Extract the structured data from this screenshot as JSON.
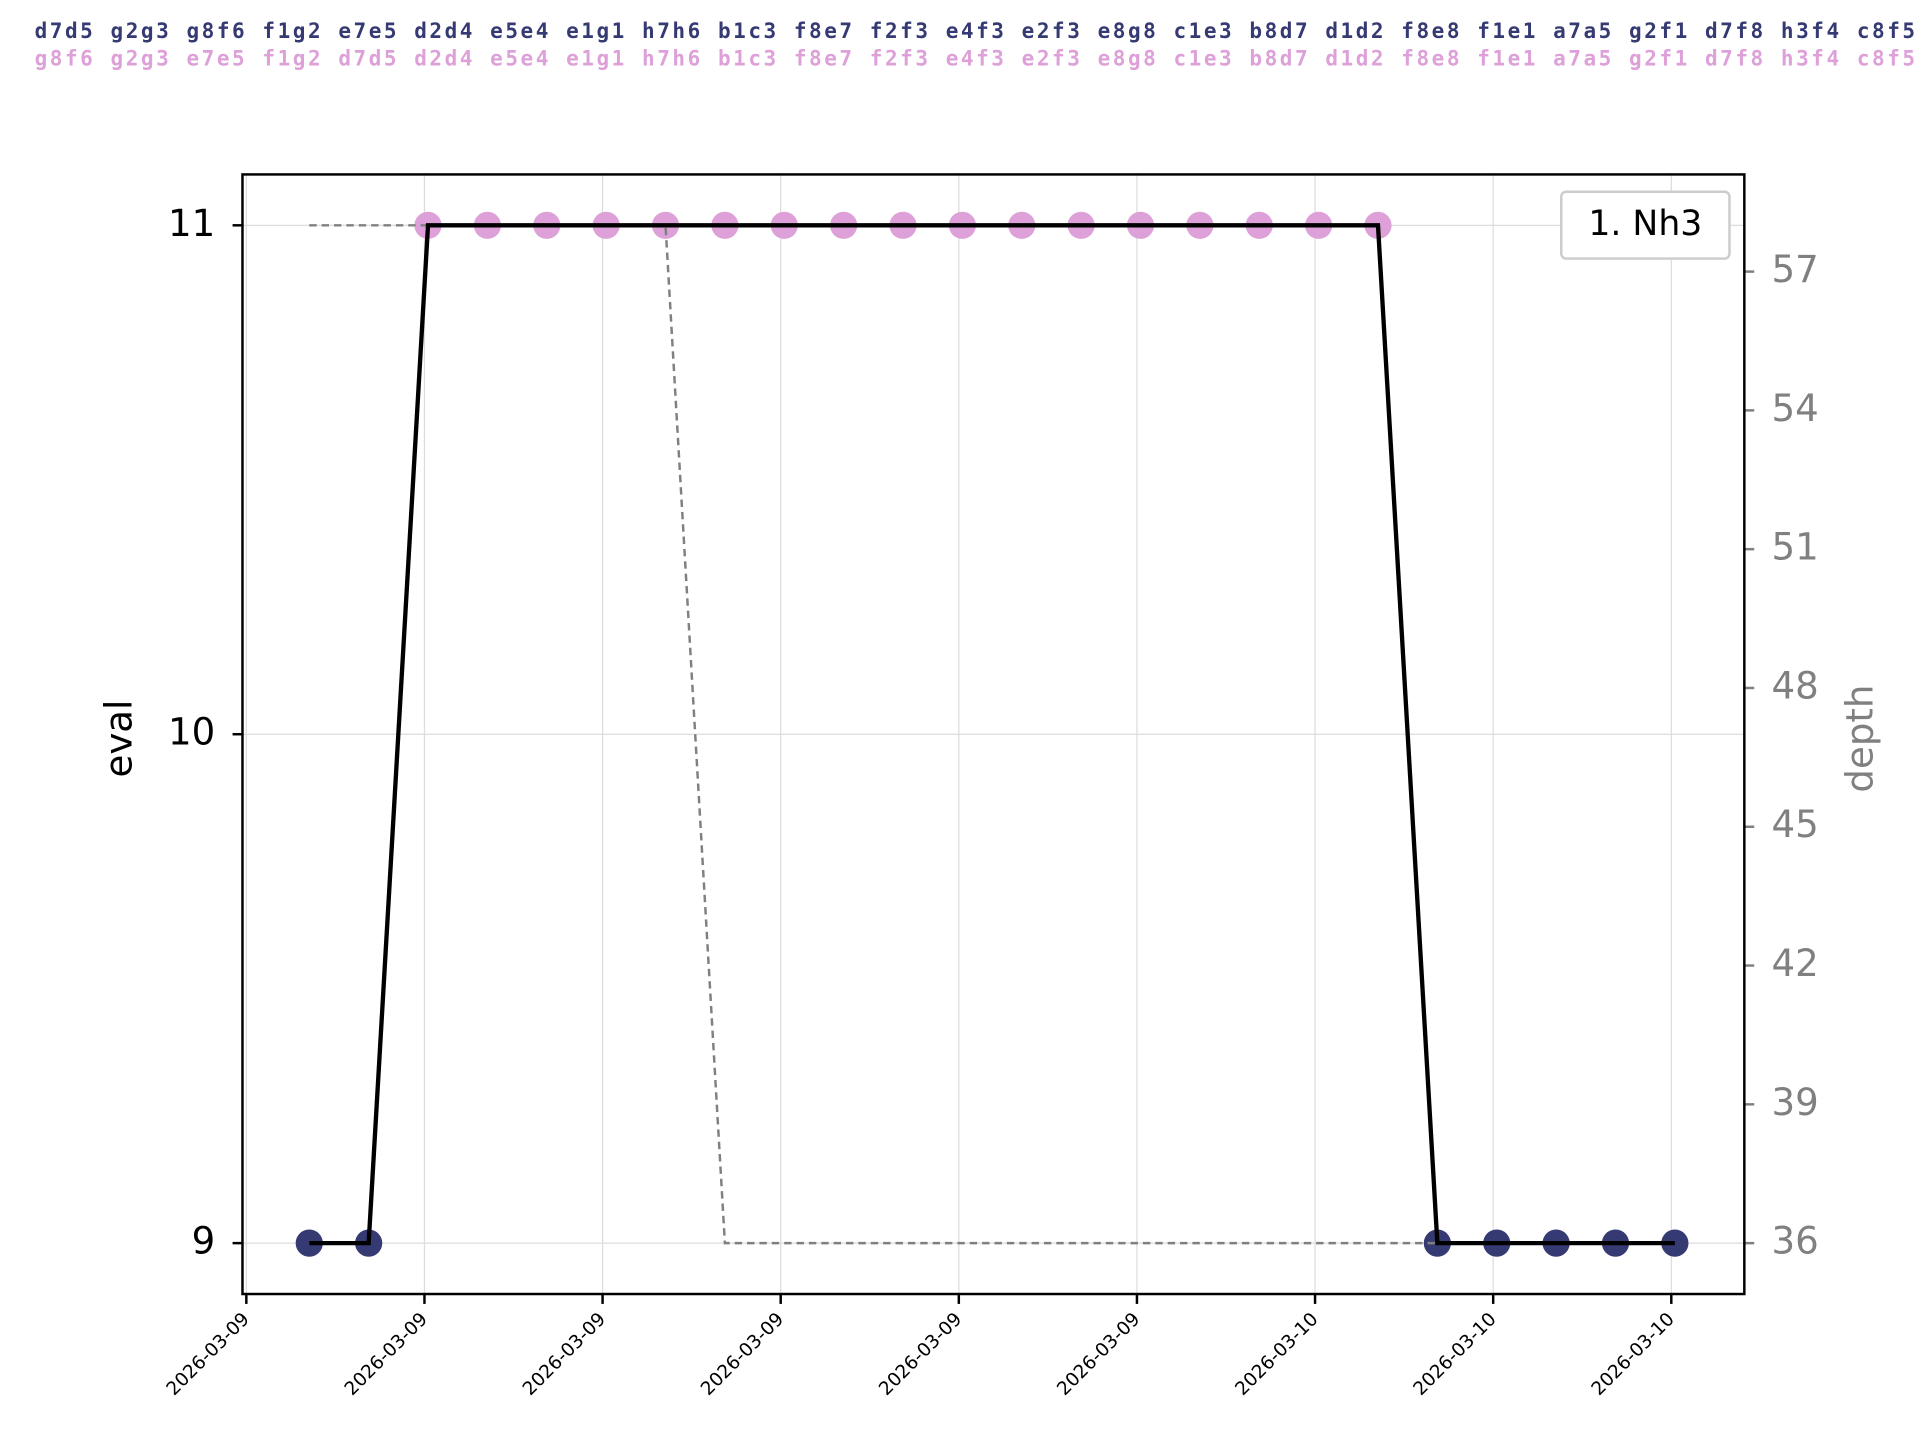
{
  "chart_data": {
    "type": "line",
    "move_lines": [
      {
        "text": "d7d5 g2g3 g8f6 f1g2 e7e5 d2d4 e5e4 e1g1 h7h6 b1c3 f8e7 f2f3 e4f3 e2f3 e8g8 c1e3 b8d7 d1d2 f8e8 f1e1 a7a5 g2f1 d7f8 h3f4 c8f5",
        "color": "#363a73"
      },
      {
        "text": "g8f6 g2g3 e7e5 f1g2 d7d5 d2d4 e5e4 e1g1 h7h6 b1c3 f8e7 f2f3 e4f3 e2f3 e8g8 c1e3 b8d7 d1d2 f8e8 f1e1 a7a5 g2f1 d7f8 h3f4 c8f5",
        "color": "#dda0d8"
      }
    ],
    "y_label": "eval",
    "y2_label": "depth",
    "x": [
      0,
      1,
      2,
      3,
      4,
      5,
      6,
      7,
      8,
      9,
      10,
      11,
      12,
      13,
      14,
      15,
      16,
      17,
      18,
      19,
      20,
      21,
      22,
      23
    ],
    "xlim": [
      -1.125,
      24.17
    ],
    "xticks": [
      {
        "value": -1.06,
        "label": "2026-03-09"
      },
      {
        "value": 1.94,
        "label": "2026-03-09"
      },
      {
        "value": 4.94,
        "label": "2026-03-09"
      },
      {
        "value": 7.94,
        "label": "2026-03-09"
      },
      {
        "value": 10.94,
        "label": "2026-03-09"
      },
      {
        "value": 13.94,
        "label": "2026-03-09"
      },
      {
        "value": 16.94,
        "label": "2026-03-10"
      },
      {
        "value": 19.94,
        "label": "2026-03-10"
      },
      {
        "value": 22.94,
        "label": "2026-03-10"
      }
    ],
    "ylim": [
      8.9,
      11.1
    ],
    "yticks": [
      9,
      10,
      11
    ],
    "y2lim": [
      34.9,
      59.1
    ],
    "y2ticks": [
      36,
      39,
      42,
      45,
      48,
      51,
      54,
      57
    ],
    "grid": true,
    "legend": "upper right",
    "series": [
      {
        "name": "1. Nh3",
        "color": "#000000",
        "values": [
          9,
          9,
          11,
          11,
          11,
          11,
          11,
          11,
          11,
          11,
          11,
          11,
          11,
          11,
          11,
          11,
          11,
          11,
          11,
          9,
          9,
          9,
          9,
          9
        ],
        "marker_colors": [
          "#363a73",
          "#363a73",
          "#dda0d8",
          "#dda0d8",
          "#dda0d8",
          "#dda0d8",
          "#dda0d8",
          "#dda0d8",
          "#dda0d8",
          "#dda0d8",
          "#dda0d8",
          "#dda0d8",
          "#dda0d8",
          "#dda0d8",
          "#dda0d8",
          "#dda0d8",
          "#dda0d8",
          "#dda0d8",
          "#dda0d8",
          "#363a73",
          "#363a73",
          "#363a73",
          "#363a73",
          "#363a73"
        ]
      },
      {
        "color": "#808080",
        "axis": "y2",
        "linestyle": "dashed",
        "values": [
          58,
          58,
          58,
          58,
          58,
          58,
          58,
          36,
          36,
          36,
          36,
          36,
          36,
          36,
          36,
          36,
          36,
          36,
          36,
          36,
          36,
          36,
          36,
          36
        ]
      }
    ]
  }
}
